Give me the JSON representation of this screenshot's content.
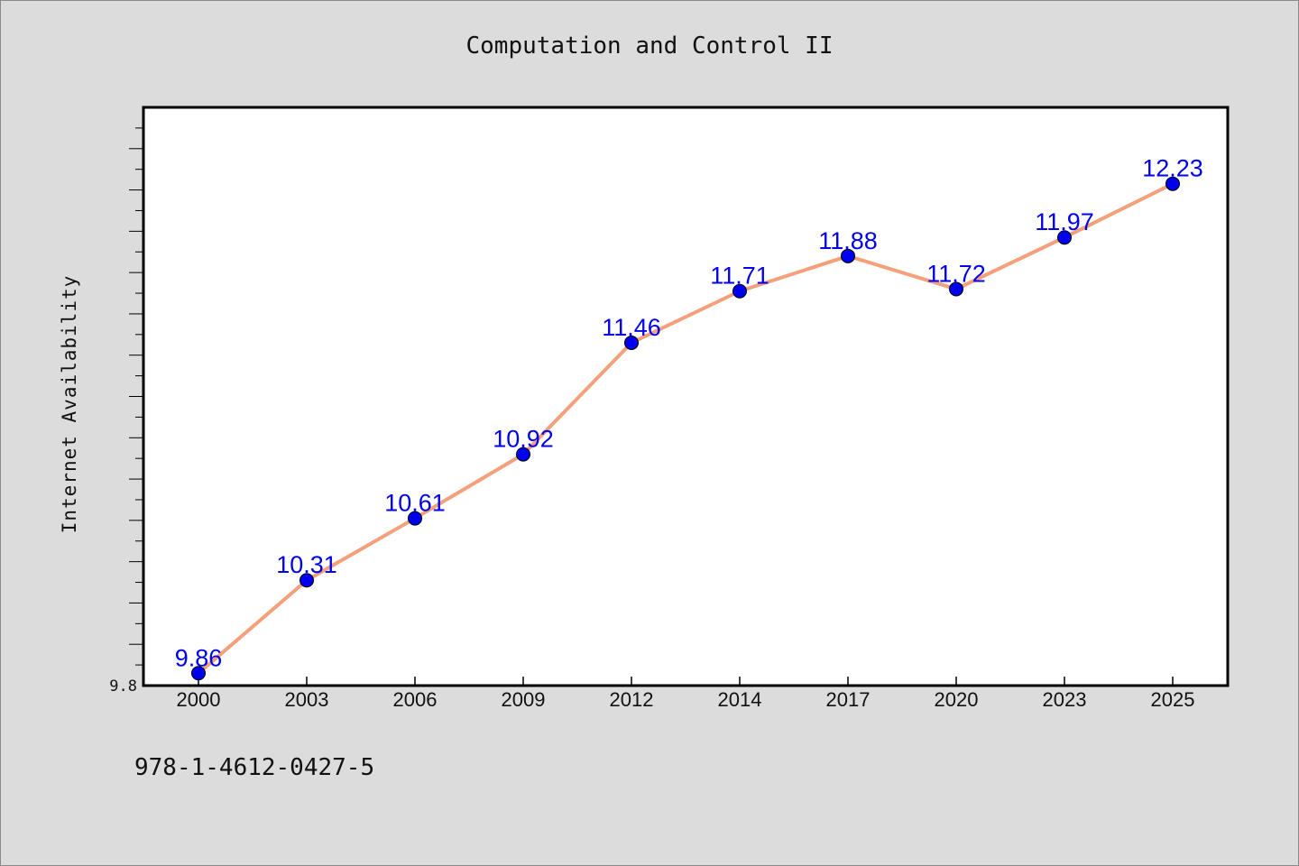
{
  "chart_data": {
    "type": "line",
    "title": "Computation and Control II",
    "xlabel": "",
    "ylabel": "Internet Availability",
    "categories": [
      "2000",
      "2003",
      "2006",
      "2009",
      "2012",
      "2014",
      "2017",
      "2020",
      "2023",
      "2025"
    ],
    "series": [
      {
        "values": [
          9.86,
          10.31,
          10.61,
          10.92,
          11.46,
          11.71,
          11.88,
          11.72,
          11.97,
          12.23
        ],
        "line_color": "#f4a07a",
        "marker_color": "#0000ee",
        "label_color": "#0000ee"
      }
    ],
    "data_labels": [
      "9.86",
      "10.31",
      "10.61",
      "10.92",
      "11.46",
      "11.71",
      "11.88",
      "11.72",
      "11.97",
      "12.23"
    ],
    "ylim": [
      9.8,
      12.6
    ],
    "y_tick_label": "9.8",
    "grid": false
  },
  "footer": {
    "isbn": "978-1-4612-0427-5"
  }
}
